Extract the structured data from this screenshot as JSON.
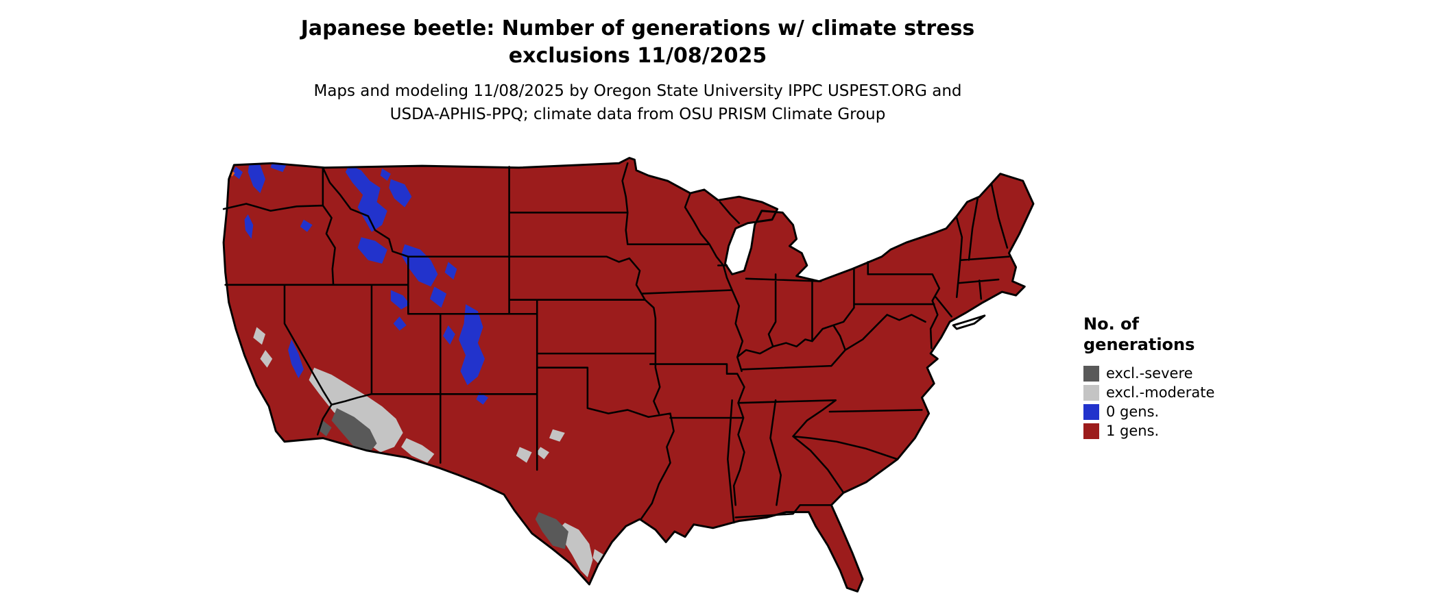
{
  "title": {
    "line1": "Japanese beetle: Number of generations w/ climate stress",
    "line2": "exclusions 11/08/2025"
  },
  "subtitle": {
    "line1": "Maps and modeling 11/08/2025 by Oregon State University IPPC USPEST.ORG and",
    "line2": "USDA-APHIS-PPQ; climate data from OSU PRISM Climate Group"
  },
  "legend": {
    "title_line1": "No. of",
    "title_line2": "generations",
    "items": [
      {
        "label": "excl.-severe",
        "color": "#595959"
      },
      {
        "label": "excl.-moderate",
        "color": "#c4c4c4"
      },
      {
        "label": "0 gens.",
        "color": "#2233cc"
      },
      {
        "label": "1 gens.",
        "color": "#9c1c1c"
      }
    ]
  },
  "colors": {
    "severe": "#595959",
    "moderate": "#c4c4c4",
    "zero_gens": "#2233cc",
    "one_gen": "#9c1c1c",
    "accent_orange": "#e8601c",
    "border": "#000000",
    "background": "#ffffff"
  },
  "map": {
    "region": "Contiguous United States",
    "type": "choropleth"
  }
}
